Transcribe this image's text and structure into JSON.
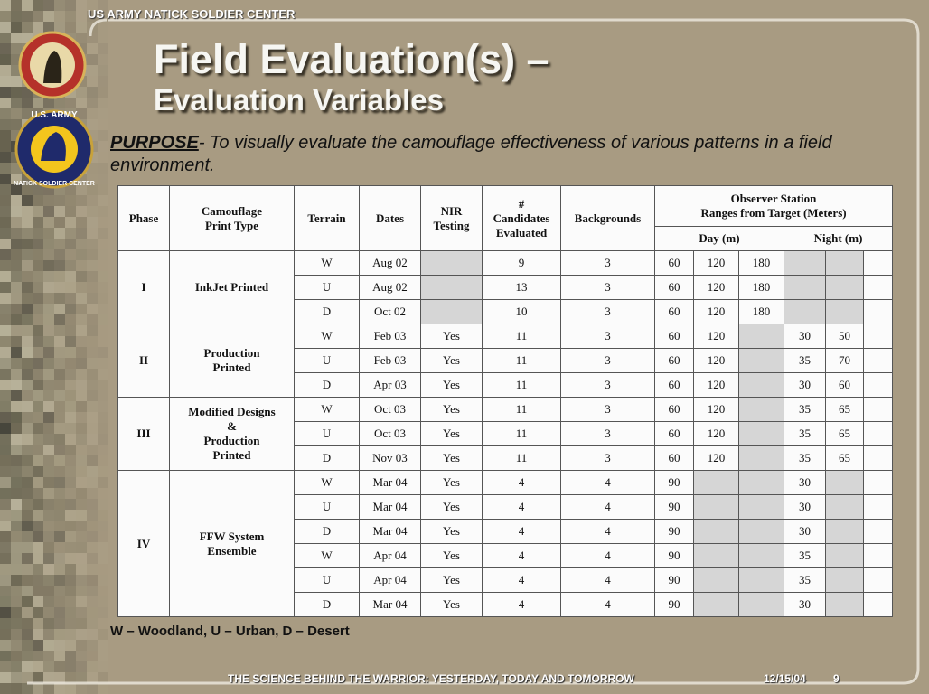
{
  "header": {
    "org": "US ARMY NATICK SOLDIER CENTER",
    "logo_text": "U.S. ARMY",
    "logo_ring": "NATICK SOLDIER CENTER"
  },
  "title": {
    "line1": "Field Evaluation(s) –",
    "line2": "Evaluation Variables"
  },
  "purpose": {
    "label": "PURPOSE",
    "text": "- To visually evaluate the camouflage effectiveness of various patterns in a field environment."
  },
  "table": {
    "headers": {
      "phase": "Phase",
      "print_type": "Camouflage\nPrint Type",
      "terrain": "Terrain",
      "dates": "Dates",
      "nir": "NIR\nTesting",
      "candidates": "#\nCandidates\nEvaluated",
      "backgrounds": "Backgrounds",
      "observer": "Observer Station\nRanges from Target (Meters)",
      "day": "Day (m)",
      "night": "Night (m)"
    },
    "phases": [
      {
        "phase": "I",
        "print_type": "InkJet Printed",
        "rows": [
          {
            "terrain": "W",
            "date": "Aug 02",
            "candidates": 9,
            "backgrounds": 3,
            "day": [
              60,
              120,
              180
            ],
            "night": []
          },
          {
            "terrain": "U",
            "date": "Aug 02",
            "candidates": 13,
            "backgrounds": 3,
            "day": [
              60,
              120,
              180
            ],
            "night": []
          },
          {
            "terrain": "D",
            "date": "Oct 02",
            "candidates": 10,
            "backgrounds": 3,
            "day": [
              60,
              120,
              180
            ],
            "night": []
          }
        ]
      },
      {
        "phase": "II",
        "print_type": "Production\nPrinted",
        "rows": [
          {
            "terrain": "W",
            "date": "Feb 03",
            "nir": "Yes",
            "candidates": 11,
            "backgrounds": 3,
            "day": [
              60,
              120
            ],
            "night": [
              30,
              50
            ]
          },
          {
            "terrain": "U",
            "date": "Feb 03",
            "nir": "Yes",
            "candidates": 11,
            "backgrounds": 3,
            "day": [
              60,
              120
            ],
            "night": [
              35,
              70
            ]
          },
          {
            "terrain": "D",
            "date": "Apr 03",
            "nir": "Yes",
            "candidates": 11,
            "backgrounds": 3,
            "day": [
              60,
              120
            ],
            "night": [
              30,
              60
            ]
          }
        ]
      },
      {
        "phase": "III",
        "print_type": "Modified Designs\n&\nProduction\nPrinted",
        "rows": [
          {
            "terrain": "W",
            "date": "Oct 03",
            "nir": "Yes",
            "candidates": 11,
            "backgrounds": 3,
            "day": [
              60,
              120
            ],
            "night": [
              35,
              65
            ]
          },
          {
            "terrain": "U",
            "date": "Oct 03",
            "nir": "Yes",
            "candidates": 11,
            "backgrounds": 3,
            "day": [
              60,
              120
            ],
            "night": [
              35,
              65
            ]
          },
          {
            "terrain": "D",
            "date": "Nov 03",
            "nir": "Yes",
            "candidates": 11,
            "backgrounds": 3,
            "day": [
              60,
              120
            ],
            "night": [
              35,
              65
            ]
          }
        ]
      },
      {
        "phase": "IV",
        "print_type": "FFW System\nEnsemble",
        "rows": [
          {
            "terrain": "W",
            "date": "Mar 04",
            "nir": "Yes",
            "candidates": 4,
            "backgrounds": 4,
            "day": [
              90
            ],
            "night": [
              30
            ]
          },
          {
            "terrain": "U",
            "date": "Mar 04",
            "nir": "Yes",
            "candidates": 4,
            "backgrounds": 4,
            "day": [
              90
            ],
            "night": [
              30
            ]
          },
          {
            "terrain": "D",
            "date": "Mar 04",
            "nir": "Yes",
            "candidates": 4,
            "backgrounds": 4,
            "day": [
              90
            ],
            "night": [
              30
            ]
          },
          {
            "terrain": "W",
            "date": "Apr 04",
            "nir": "Yes",
            "candidates": 4,
            "backgrounds": 4,
            "day": [
              90
            ],
            "night": [
              35
            ]
          },
          {
            "terrain": "U",
            "date": "Apr 04",
            "nir": "Yes",
            "candidates": 4,
            "backgrounds": 4,
            "day": [
              90
            ],
            "night": [
              35
            ]
          },
          {
            "terrain": "D",
            "date": "Mar 04",
            "nir": "Yes",
            "candidates": 4,
            "backgrounds": 4,
            "day": [
              90
            ],
            "night": [
              30
            ]
          }
        ]
      }
    ]
  },
  "legend": "W – Woodland, U – Urban, D – Desert",
  "footer": {
    "motto": "THE SCIENCE BEHIND THE WARRIOR: YESTERDAY, TODAY AND TOMORROW",
    "date": "12/15/04",
    "page": "9"
  }
}
